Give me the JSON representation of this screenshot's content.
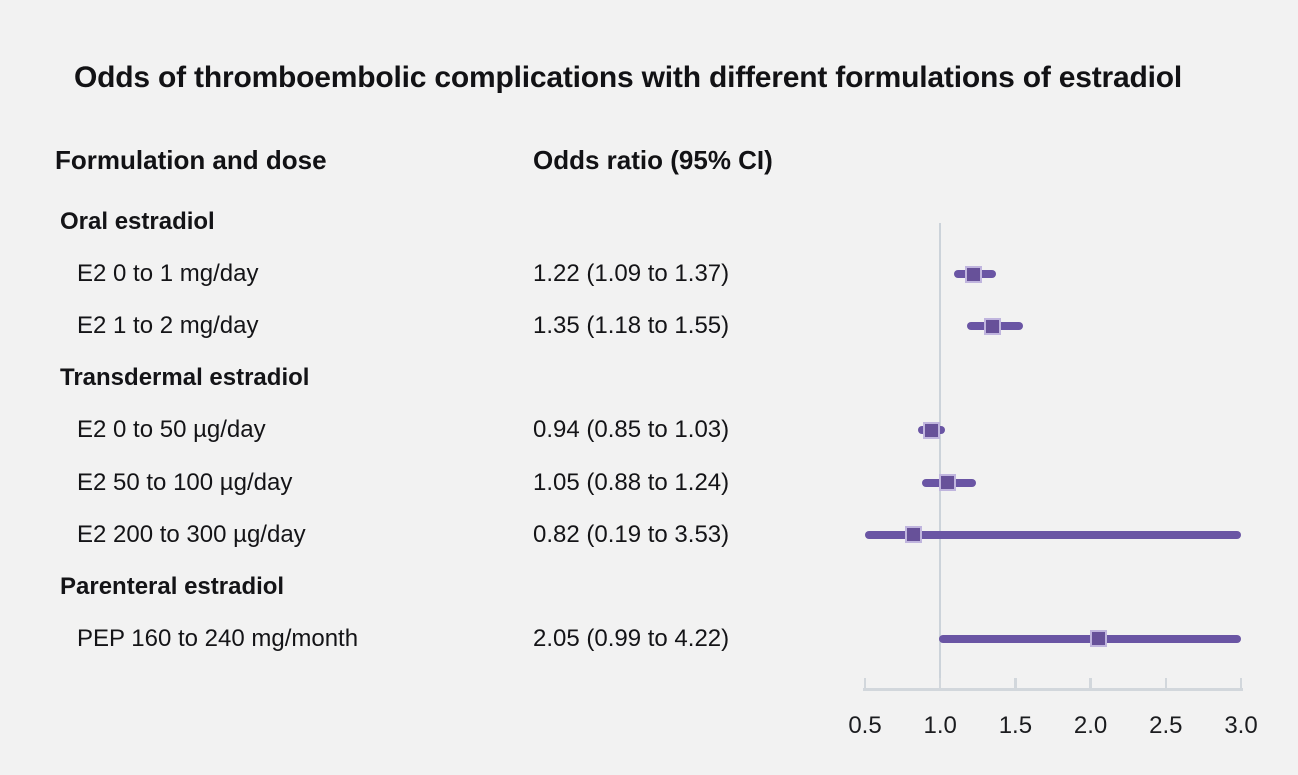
{
  "title": "Odds of thromboembolic complications with different formulations of estradiol",
  "columns": {
    "formulation": "Formulation and dose",
    "odds": "Odds ratio (95% CI)"
  },
  "colors": {
    "background": "#f2f2f2",
    "text": "#141417",
    "marker_line": "#6a55a4",
    "marker_fill": "#675199",
    "marker_border": "#c0b5de",
    "reference_line": "#ccd3da",
    "axis": "#d2d7dc"
  },
  "chart_data": {
    "type": "scatter",
    "variant": "forest-plot",
    "title": "Odds of thromboembolic complications with different formulations of estradiol",
    "xlabel": "",
    "ylabel": "",
    "xlim": [
      0.5,
      3.0
    ],
    "x_ticks": [
      "0.5",
      "1.0",
      "1.5",
      "2.0",
      "2.5",
      "3.0"
    ],
    "x_tick_values": [
      0.5,
      1.0,
      1.5,
      2.0,
      2.5,
      3.0
    ],
    "reference_line_x": 1.0,
    "grid": false,
    "legend": "none",
    "rows": [
      {
        "kind": "section",
        "label": "Oral estradiol"
      },
      {
        "kind": "item",
        "label": "E2 0 to 1 mg/day",
        "value_text": "1.22 (1.09 to 1.37)",
        "or": 1.22,
        "ci_low": 1.09,
        "ci_high": 1.37
      },
      {
        "kind": "item",
        "label": "E2 1 to 2 mg/day",
        "value_text": "1.35 (1.18 to 1.55)",
        "or": 1.35,
        "ci_low": 1.18,
        "ci_high": 1.55
      },
      {
        "kind": "section",
        "label": "Transdermal estradiol"
      },
      {
        "kind": "item",
        "label": "E2 0 to 50 µg/day",
        "value_text": "0.94 (0.85 to 1.03)",
        "or": 0.94,
        "ci_low": 0.85,
        "ci_high": 1.03
      },
      {
        "kind": "item",
        "label": "E2 50 to 100 µg/day",
        "value_text": "1.05 (0.88 to 1.24)",
        "or": 1.05,
        "ci_low": 0.88,
        "ci_high": 1.24
      },
      {
        "kind": "item",
        "label": "E2 200 to 300 µg/day",
        "value_text": "0.82 (0.19 to 3.53)",
        "or": 0.82,
        "ci_low": 0.19,
        "ci_high": 3.53
      },
      {
        "kind": "section",
        "label": "Parenteral estradiol"
      },
      {
        "kind": "item",
        "label": "PEP 160 to 240 mg/month",
        "value_text": "2.05 (0.99 to 4.22)",
        "or": 2.05,
        "ci_low": 0.99,
        "ci_high": 4.22
      }
    ]
  }
}
